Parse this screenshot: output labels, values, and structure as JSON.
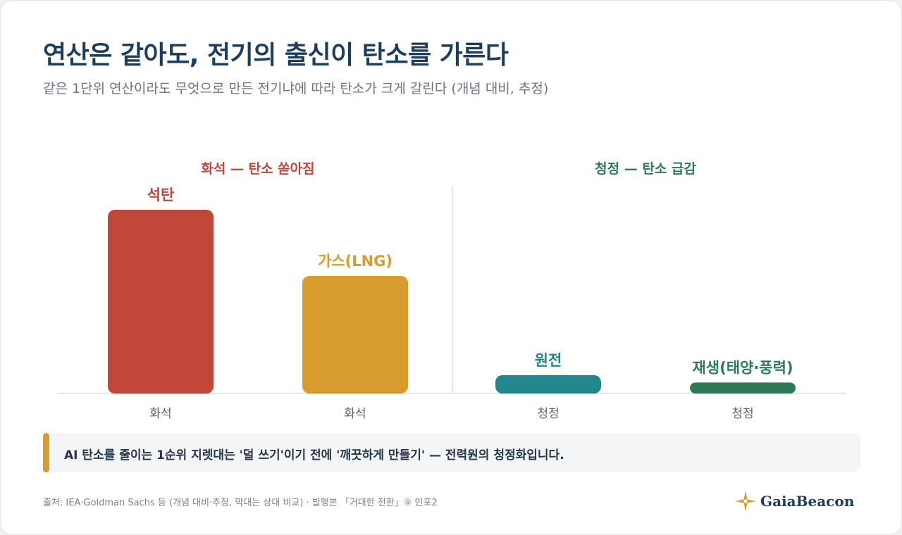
{
  "header": {
    "title": "연산은 같아도, 전기의 출신이 탄소를 가른다",
    "subtitle": "같은 1단위 연산이라도 무엇으로 만든 전기냐에 따라 탄소가 크게 갈린다 (개념 대비, 추정)"
  },
  "chart_data": {
    "type": "bar",
    "title": "",
    "xlabel": "",
    "ylabel": "",
    "categories": [
      "석탄",
      "가스(LNG)",
      "원전",
      "재생(태양·풍력)"
    ],
    "values": [
      100,
      64,
      10,
      6
    ],
    "ylim": [
      0,
      100
    ],
    "grid": false,
    "bar_labels": [
      "석탄",
      "가스(LNG)",
      "원전",
      "재생(태양·풍력)"
    ],
    "tick_labels": [
      "화석",
      "화석",
      "청정",
      "청정"
    ],
    "bar_colors": [
      "#c0473a",
      "#d89b2e",
      "#23868c",
      "#2e7a58"
    ],
    "label_colors": [
      "#c0473a",
      "#d89b2e",
      "#23868c",
      "#2e7a58"
    ],
    "groups": [
      {
        "label": "화석 — 탄소 쏟아짐",
        "color": "#c0473a",
        "indices": [
          0,
          1
        ]
      },
      {
        "label": "청정 — 탄소 급감",
        "color": "#2e7a58",
        "indices": [
          2,
          3
        ]
      }
    ]
  },
  "callout": {
    "text": "AI 탄소를 줄이는 1순위 지렛대는 '덜 쓰기'이기 전에 '깨끗하게 만들기' — 전력원의 청정화입니다.",
    "accent_color": "#d89b2e"
  },
  "footer": {
    "source": "출처: IEA·Goldman Sachs 등 (개념 대비·추정, 막대는 상대 비교) · 발행본 「거대한 전환」⑨ 인포2"
  },
  "brand": {
    "name": "GaiaBeacon",
    "icon": "compass-star-icon",
    "icon_color": "#d89b2e"
  }
}
